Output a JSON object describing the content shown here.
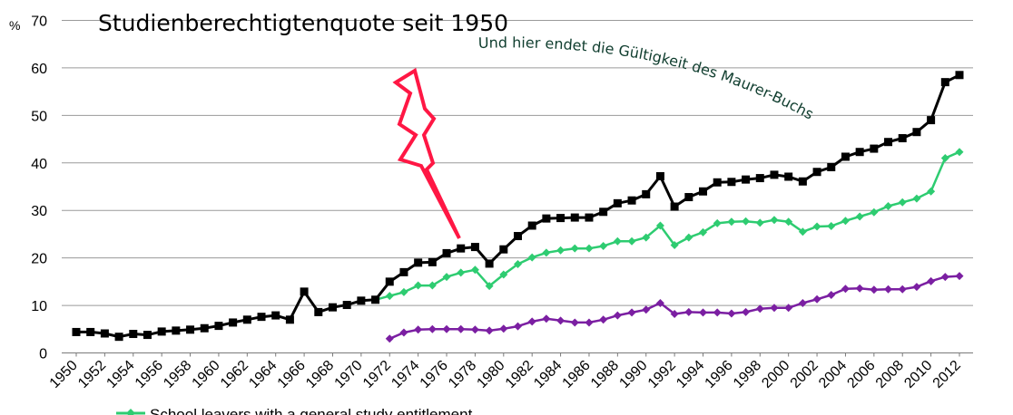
{
  "chart_data": {
    "type": "line",
    "title": "Studienberechtigtenquote seit 1950",
    "ylabel": "%",
    "xlabel": "",
    "ylim": [
      0,
      70
    ],
    "yticks": [
      0,
      10,
      20,
      30,
      40,
      50,
      60,
      70
    ],
    "x": [
      1950,
      1951,
      1952,
      1953,
      1954,
      1955,
      1956,
      1957,
      1958,
      1959,
      1960,
      1961,
      1962,
      1963,
      1964,
      1965,
      1966,
      1967,
      1968,
      1969,
      1970,
      1971,
      1972,
      1973,
      1974,
      1975,
      1976,
      1977,
      1978,
      1979,
      1980,
      1981,
      1982,
      1983,
      1984,
      1985,
      1986,
      1987,
      1988,
      1989,
      1990,
      1991,
      1992,
      1993,
      1994,
      1995,
      1996,
      1997,
      1998,
      1999,
      2000,
      2001,
      2002,
      2003,
      2004,
      2005,
      2006,
      2007,
      2008,
      2009,
      2010,
      2011,
      2012
    ],
    "xtick_labels": [
      "1950",
      "1952",
      "1954",
      "1956",
      "1958",
      "1960",
      "1962",
      "1964",
      "1966",
      "1968",
      "1970",
      "1972",
      "1974",
      "1976",
      "1978",
      "1980",
      "1982",
      "1984",
      "1986",
      "1988",
      "1990",
      "1992",
      "1994",
      "1996",
      "1998",
      "2000",
      "2002",
      "2004",
      "2006",
      "2008",
      "2010",
      "2012"
    ],
    "grid": true,
    "annotation": "Und hier endet die Gültigkeit des Maurer-Buchs",
    "series": [
      {
        "name": "",
        "color": "#000000",
        "marker": "square",
        "values": [
          4.4,
          4.4,
          4.1,
          3.4,
          4.0,
          3.8,
          4.5,
          4.7,
          4.9,
          5.2,
          5.7,
          6.4,
          7.0,
          7.6,
          7.9,
          7.0,
          12.9,
          8.6,
          9.6,
          10.1,
          11.0,
          11.2,
          15.0,
          17.0,
          19.0,
          19.1,
          21.0,
          22.0,
          22.3,
          18.8,
          21.8,
          24.6,
          26.8,
          28.3,
          28.4,
          28.5,
          28.5,
          29.7,
          31.5,
          32.1,
          33.4,
          37.2,
          30.8,
          32.8,
          34.0,
          35.9,
          36.0,
          36.5,
          36.8,
          37.5,
          37.1,
          36.1,
          38.1,
          39.1,
          41.3,
          42.3,
          43.0,
          44.4,
          45.2,
          46.5,
          49.0,
          57.0,
          58.5
        ]
      },
      {
        "name": "School leavers with a general study entitlement",
        "color": "#2ecc71",
        "marker": "diamond",
        "values": [
          null,
          null,
          null,
          null,
          null,
          null,
          null,
          null,
          null,
          null,
          null,
          null,
          null,
          null,
          null,
          null,
          null,
          null,
          null,
          null,
          null,
          11.2,
          12.0,
          12.8,
          14.2,
          14.2,
          16.0,
          16.9,
          17.5,
          14.1,
          16.5,
          18.7,
          20.1,
          21.1,
          21.6,
          22.0,
          22.0,
          22.5,
          23.5,
          23.5,
          24.3,
          26.8,
          22.7,
          24.3,
          25.4,
          27.3,
          27.6,
          27.7,
          27.4,
          28.0,
          27.6,
          25.5,
          26.6,
          26.7,
          27.8,
          28.7,
          29.6,
          30.9,
          31.7,
          32.5,
          34.0,
          41.0,
          42.3
        ]
      },
      {
        "name": "",
        "color": "#7b1fa2",
        "marker": "diamond",
        "values": [
          null,
          null,
          null,
          null,
          null,
          null,
          null,
          null,
          null,
          null,
          null,
          null,
          null,
          null,
          null,
          null,
          null,
          null,
          null,
          null,
          null,
          null,
          3.0,
          4.3,
          4.9,
          5.0,
          5.0,
          5.0,
          4.9,
          4.7,
          5.1,
          5.6,
          6.6,
          7.2,
          6.8,
          6.4,
          6.4,
          7.0,
          7.9,
          8.5,
          9.1,
          10.5,
          8.2,
          8.6,
          8.5,
          8.5,
          8.3,
          8.6,
          9.3,
          9.5,
          9.5,
          10.5,
          11.3,
          12.2,
          13.5,
          13.6,
          13.3,
          13.4,
          13.4,
          13.9,
          15.1,
          16.0,
          16.2
        ]
      }
    ]
  }
}
